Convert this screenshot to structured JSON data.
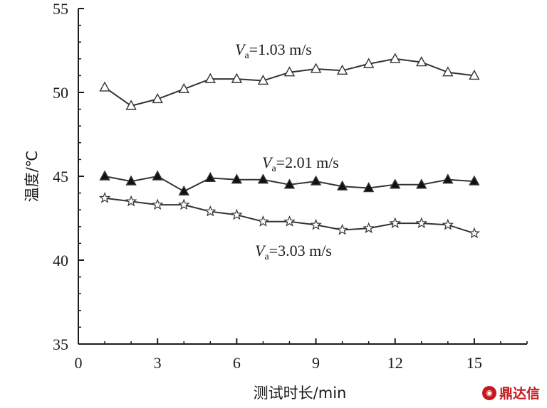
{
  "chart_data": {
    "type": "line",
    "title": "",
    "xlabel": "测试时长/min",
    "ylabel": "温度/℃",
    "xlim": [
      0,
      17
    ],
    "ylim": [
      35,
      55
    ],
    "xticks": [
      0,
      3,
      6,
      9,
      12,
      15
    ],
    "yticks": [
      35,
      40,
      45,
      50,
      55
    ],
    "x": [
      1,
      2,
      3,
      4,
      5,
      6,
      7,
      8,
      9,
      10,
      11,
      12,
      13,
      14,
      15
    ],
    "series": [
      {
        "name": "Va=1.03 m/s",
        "label_var": "V",
        "label_sub": "a",
        "label_rest": "=1.03 m/s",
        "marker": "open-triangle",
        "values": [
          50.3,
          49.2,
          49.6,
          50.2,
          50.8,
          50.8,
          50.7,
          51.2,
          51.4,
          51.3,
          51.7,
          52.0,
          51.8,
          51.2,
          51.0
        ]
      },
      {
        "name": "Va=2.01 m/s",
        "label_var": "V",
        "label_sub": "a",
        "label_rest": "=2.01 m/s",
        "marker": "filled-triangle",
        "values": [
          45.0,
          44.7,
          45.0,
          44.1,
          44.9,
          44.8,
          44.8,
          44.5,
          44.7,
          44.4,
          44.3,
          44.5,
          44.5,
          44.8,
          44.7
        ]
      },
      {
        "name": "Va=3.03 m/s",
        "label_var": "V",
        "label_sub": "a",
        "label_rest": "=3.03 m/s",
        "marker": "open-star",
        "values": [
          43.7,
          43.5,
          43.3,
          43.3,
          42.9,
          42.7,
          42.3,
          42.3,
          42.1,
          41.8,
          41.9,
          42.2,
          42.2,
          42.1,
          41.6
        ]
      }
    ]
  },
  "watermark": {
    "text": "鼎达信",
    "icon": "brand-logo-icon"
  }
}
